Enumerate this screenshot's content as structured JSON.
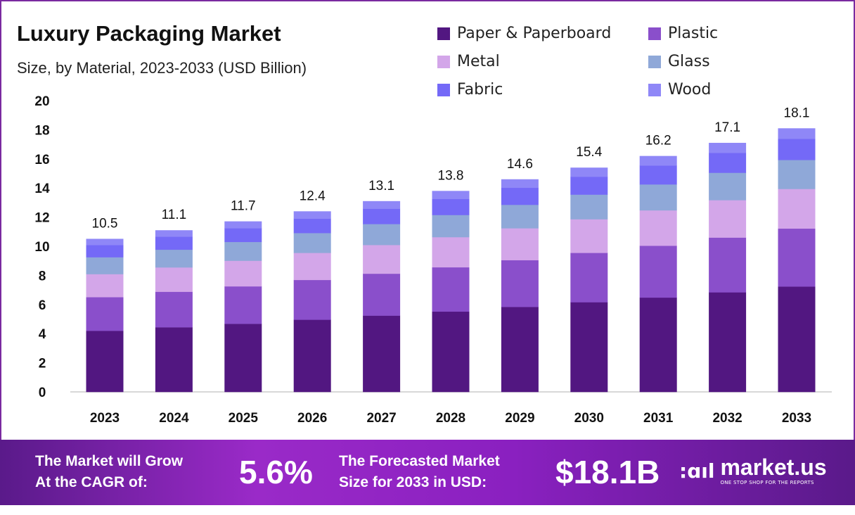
{
  "title": "Luxury Packaging Market",
  "subtitle": "Size, by Material, 2023-2033 (USD Billion)",
  "chart_data": {
    "type": "bar",
    "stacked": true,
    "title": "Luxury Packaging Market",
    "subtitle": "Size, by Material, 2023-2033 (USD Billion)",
    "xlabel": "",
    "ylabel": "",
    "ylim": [
      0,
      20
    ],
    "yticks": [
      "0",
      "2",
      "4",
      "6",
      "8",
      "10",
      "12",
      "14",
      "16",
      "18",
      "20"
    ],
    "grid": false,
    "legend": "top-right",
    "categories": [
      "2023",
      "2024",
      "2025",
      "2026",
      "2027",
      "2028",
      "2029",
      "2030",
      "2031",
      "2032",
      "2033"
    ],
    "totals": [
      "10.5",
      "11.1",
      "11.7",
      "12.4",
      "13.1",
      "13.8",
      "14.6",
      "15.4",
      "16.2",
      "17.1",
      "18.1"
    ],
    "series": [
      {
        "name": "Paper & Paperboard",
        "color": "#521781",
        "values": [
          4.2,
          4.44,
          4.68,
          4.96,
          5.24,
          5.52,
          5.84,
          6.16,
          6.48,
          6.84,
          7.24
        ]
      },
      {
        "name": "Plastic",
        "color": "#8a4fcb",
        "values": [
          2.31,
          2.44,
          2.57,
          2.73,
          2.88,
          3.04,
          3.21,
          3.39,
          3.56,
          3.76,
          3.98
        ]
      },
      {
        "name": "Metal",
        "color": "#d3a6e9",
        "values": [
          1.58,
          1.67,
          1.76,
          1.86,
          1.97,
          2.07,
          2.19,
          2.31,
          2.43,
          2.57,
          2.72
        ]
      },
      {
        "name": "Glass",
        "color": "#8fa8d8",
        "values": [
          1.16,
          1.22,
          1.29,
          1.36,
          1.44,
          1.52,
          1.61,
          1.69,
          1.78,
          1.88,
          1.99
        ]
      },
      {
        "name": "Fabric",
        "color": "#7469f7",
        "values": [
          0.84,
          0.89,
          0.94,
          0.99,
          1.05,
          1.1,
          1.17,
          1.23,
          1.3,
          1.37,
          1.45
        ]
      },
      {
        "name": "Wood",
        "color": "#8f87f7",
        "values": [
          0.42,
          0.44,
          0.47,
          0.5,
          0.52,
          0.55,
          0.58,
          0.62,
          0.65,
          0.68,
          0.72
        ]
      }
    ]
  },
  "footer": {
    "cagr_label_1": "The Market will Grow",
    "cagr_label_2": "At the CAGR of:",
    "cagr_value": "5.6%",
    "forecast_label_1": "The Forecasted Market",
    "forecast_label_2": "Size for 2033 in USD:",
    "forecast_value": "$18.1B",
    "brand": "market.us",
    "brand_tagline": "ONE STOP SHOP FOR THE REPORTS"
  }
}
